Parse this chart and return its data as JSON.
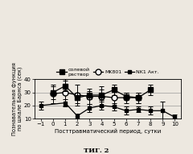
{
  "x": [
    -1,
    0,
    1,
    2,
    3,
    4,
    5,
    6,
    7,
    8,
    9,
    10
  ],
  "saline_y": [
    null,
    30,
    35,
    26,
    28,
    28,
    32,
    27,
    26,
    32,
    null,
    null
  ],
  "saline_yerr": [
    null,
    5,
    4,
    4,
    3,
    4,
    4,
    3,
    4,
    4,
    null,
    null
  ],
  "mk801_y": [
    null,
    29,
    30,
    28,
    27,
    27,
    26,
    26,
    26,
    null,
    null,
    null
  ],
  "mk801_yerr": [
    null,
    7,
    10,
    8,
    6,
    8,
    6,
    4,
    4,
    null,
    null,
    null
  ],
  "nk1_y": [
    20,
    null,
    22,
    12,
    18,
    20,
    19,
    16,
    17,
    16,
    16,
    11
  ],
  "nk1_yerr": [
    3,
    null,
    3,
    2,
    3,
    3,
    3,
    3,
    2,
    3,
    7,
    2
  ],
  "ylim": [
    10,
    40
  ],
  "yticks": [
    10,
    20,
    30,
    40
  ],
  "xticks": [
    -1,
    0,
    1,
    2,
    3,
    4,
    5,
    6,
    7,
    8,
    9,
    10
  ],
  "xlabel": "Посттравматический период, сутки",
  "ylabel": "Познавательная функция\nпо шкале Барнса (сек)",
  "fig_label": "ΤИГ. 2",
  "legend_saline": "солевой\nраствор",
  "legend_mk801": "MK801",
  "legend_nk1": "NK1 Акт.",
  "bg_color": "#ede8e0"
}
